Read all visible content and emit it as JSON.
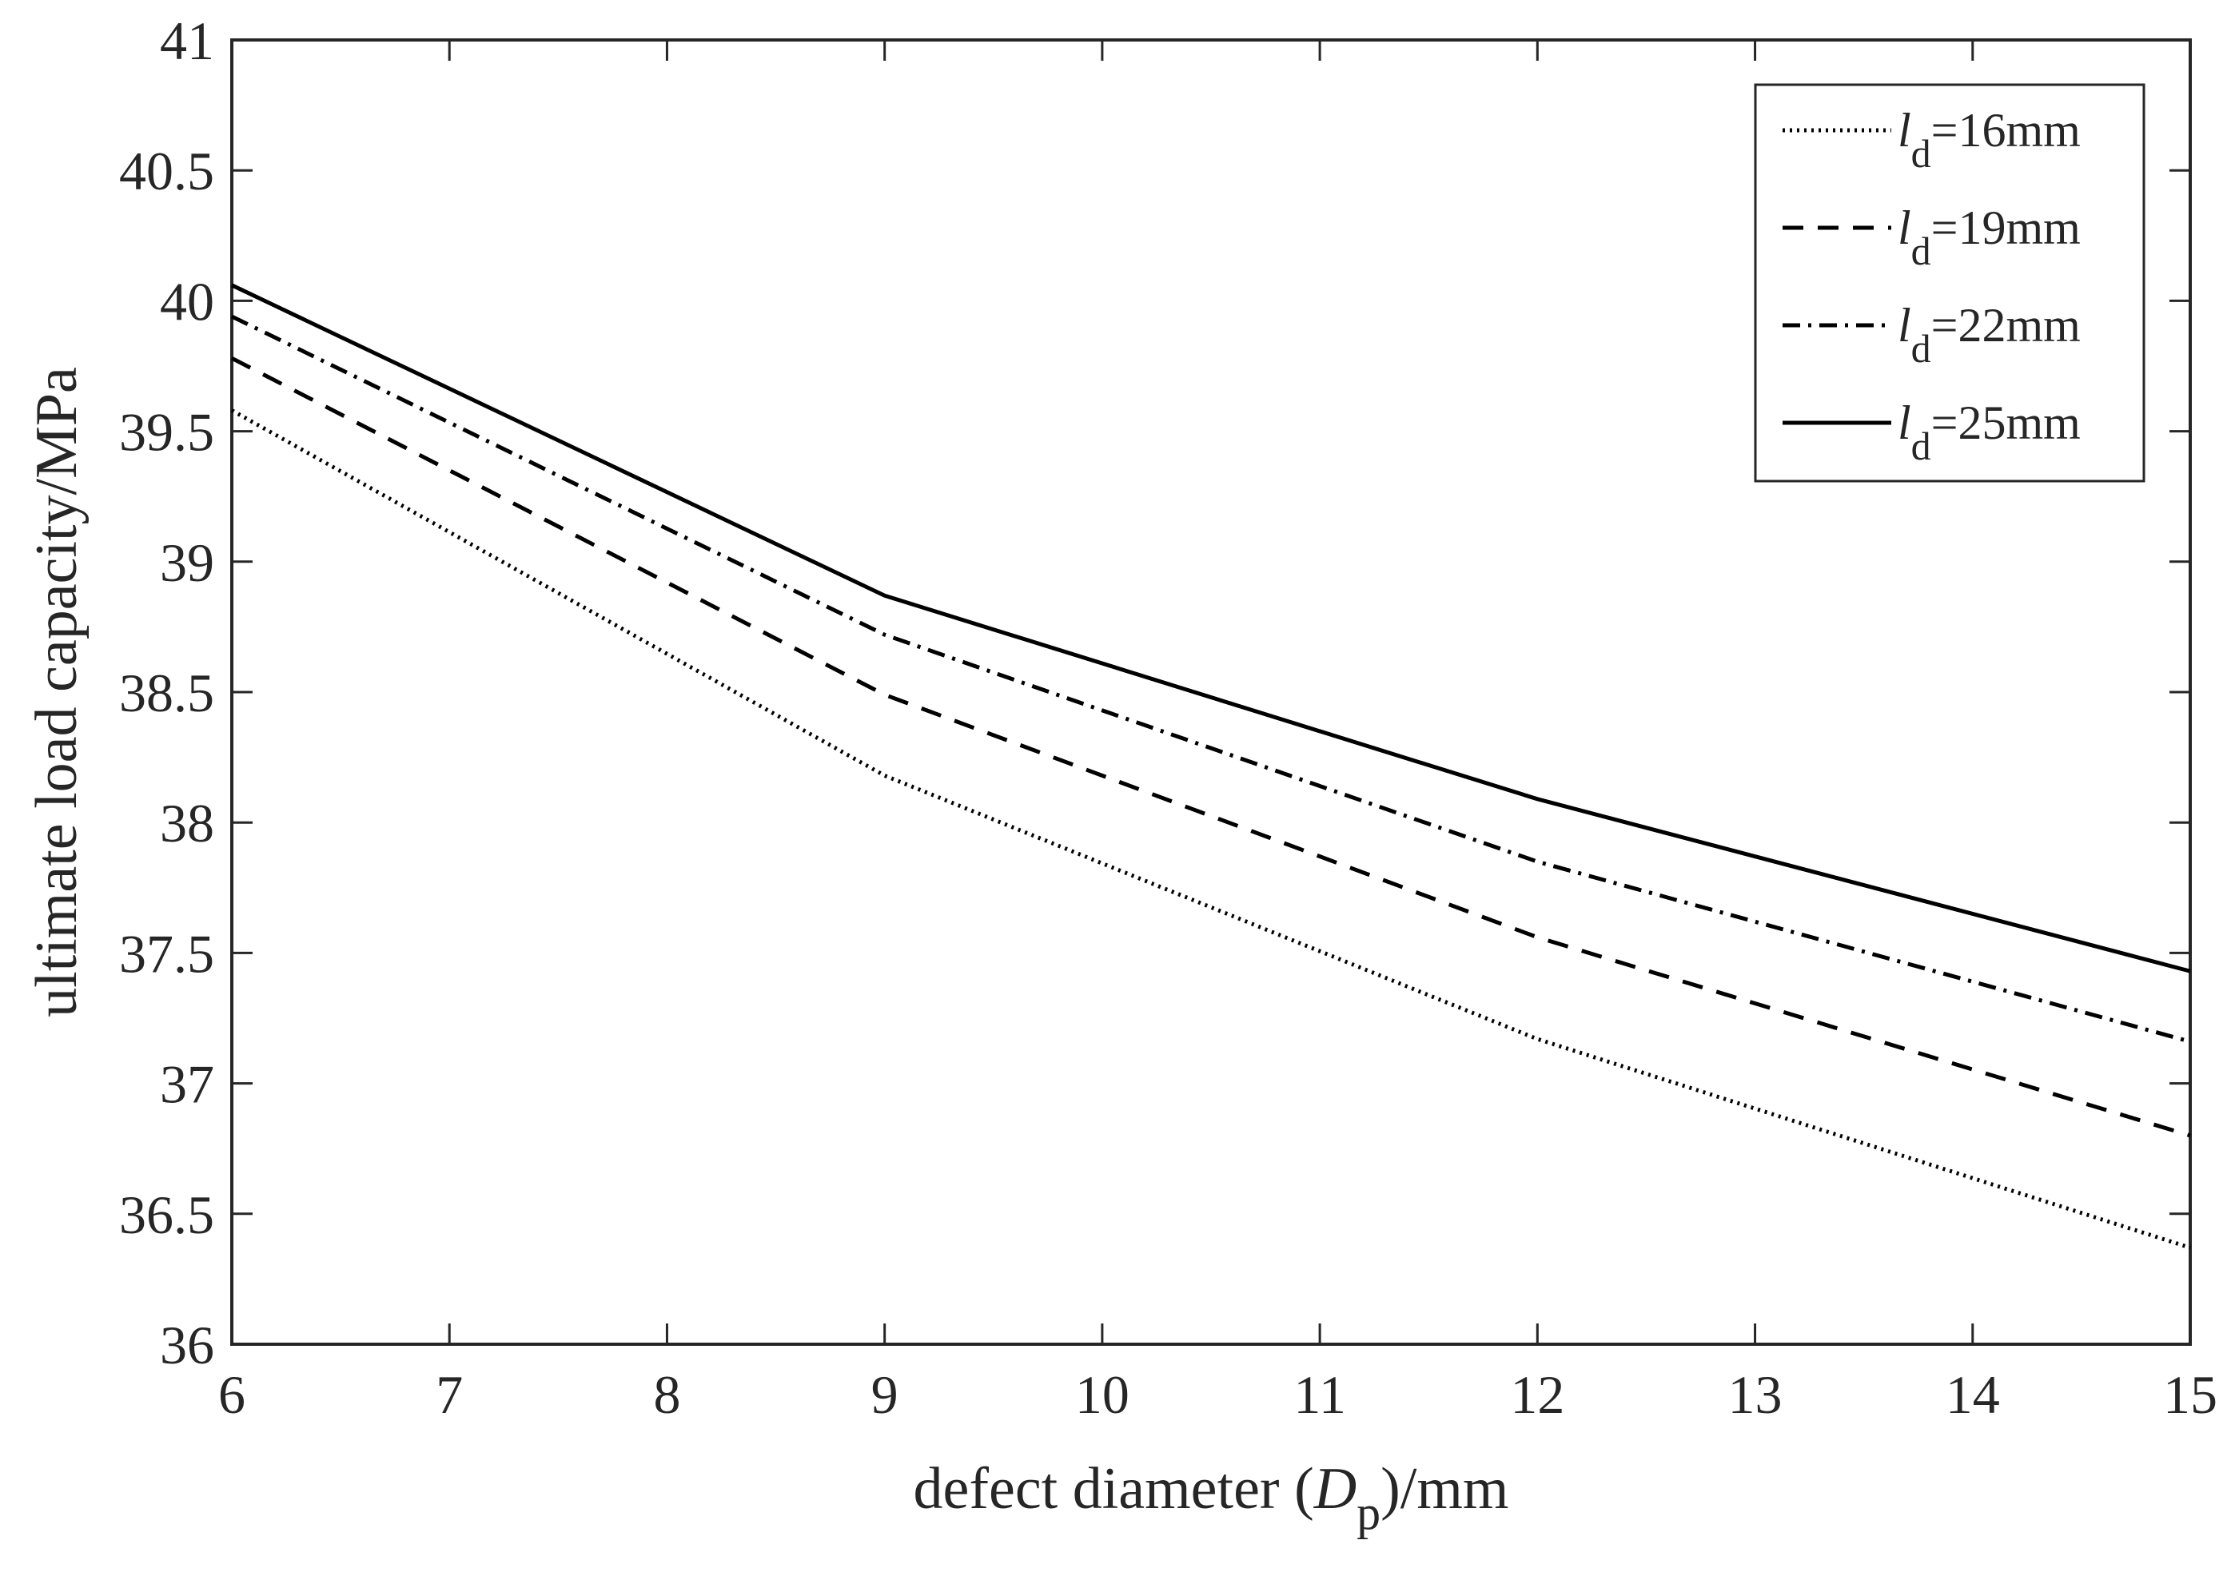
{
  "chart_data": {
    "type": "line",
    "title": "",
    "xlabel": {
      "prefix": "defect diameter (",
      "italic": "D",
      "sub": "p",
      "suffix": ")/mm"
    },
    "ylabel": "ultimate load capacity/MPa",
    "xlim": [
      6,
      15
    ],
    "ylim": [
      36,
      41
    ],
    "xticks": [
      6,
      7,
      8,
      9,
      10,
      11,
      12,
      13,
      14,
      15
    ],
    "yticks": [
      "36",
      "36.5",
      "37",
      "37.5",
      "38",
      "38.5",
      "39",
      "39.5",
      "40",
      "40.5",
      "41"
    ],
    "grid": false,
    "legend_position": "top-right",
    "x": [
      6,
      9,
      12,
      15
    ],
    "series": [
      {
        "name": {
          "italic": "l",
          "sub": "d",
          "text": "=16mm"
        },
        "style": "dotted",
        "values": [
          39.58,
          38.18,
          37.17,
          36.37
        ]
      },
      {
        "name": {
          "italic": "l",
          "sub": "d",
          "text": "=19mm"
        },
        "style": "dashed",
        "values": [
          39.78,
          38.49,
          37.56,
          36.8
        ]
      },
      {
        "name": {
          "italic": "l",
          "sub": "d",
          "text": "=22mm"
        },
        "style": "dashdot",
        "values": [
          39.94,
          38.72,
          37.85,
          37.16
        ]
      },
      {
        "name": {
          "italic": "l",
          "sub": "d",
          "text": "=25mm"
        },
        "style": "solid",
        "values": [
          40.06,
          38.87,
          38.09,
          37.43
        ]
      }
    ]
  },
  "colors": {
    "line": "#000000",
    "axis": "#262626",
    "background": "#ffffff"
  }
}
